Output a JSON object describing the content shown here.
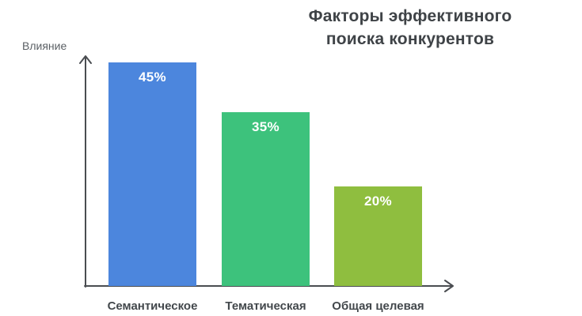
{
  "title": {
    "line1": "Факторы эффективного",
    "line2": "поиска конкурентов"
  },
  "chart_data": {
    "type": "bar",
    "title": "Факторы эффективного поиска конкурентов",
    "categories": [
      "Семантическое",
      "Тематическая",
      "Общая целевая"
    ],
    "values": [
      45,
      35,
      20
    ],
    "value_labels": [
      "45%",
      "35%",
      "20%"
    ],
    "colors": [
      "#4c86dd",
      "#3dc27c",
      "#8fbe3f"
    ],
    "xlabel": "",
    "ylabel": "Влияние",
    "ylim": [
      0,
      47
    ],
    "grid": false,
    "legend": "none",
    "axis_color": "#4a4d51",
    "value_label_color": "#ffffff",
    "category_label_color": "#43484c",
    "title_color": "#3f4347"
  }
}
